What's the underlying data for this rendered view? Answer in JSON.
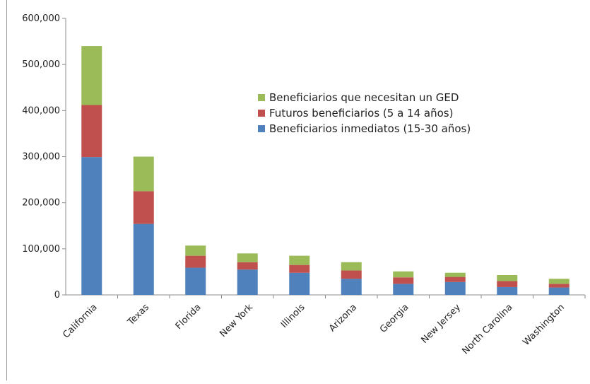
{
  "chart_data": {
    "type": "bar",
    "stacked": true,
    "title": "",
    "xlabel": "",
    "ylabel": "",
    "ylim": [
      0,
      600000
    ],
    "yticks": [
      "0",
      "100,000",
      "200,000",
      "300,000",
      "400,000",
      "500,000",
      "600,000"
    ],
    "grid": false,
    "legend_position": "upper-center",
    "categories": [
      "California",
      "Texas",
      "Florida",
      "New York",
      "Illinois",
      "Arizona",
      "Georgia",
      "New Jersey",
      "North Carolina",
      "Washington"
    ],
    "series": [
      {
        "name": "Beneficiarios inmediatos (15-30 años)",
        "color": "#4f81bd",
        "values": [
          299000,
          154000,
          59000,
          55000,
          48000,
          35000,
          24000,
          28000,
          17000,
          16000
        ]
      },
      {
        "name": "Futuros beneficiarios (5 a 14 años)",
        "color": "#c0504d",
        "values": [
          113000,
          71000,
          26000,
          16000,
          17000,
          18000,
          14000,
          11000,
          13000,
          8000
        ]
      },
      {
        "name": "Beneficiarios que necesitan un GED",
        "color": "#9bbb59",
        "values": [
          128000,
          75000,
          22000,
          19000,
          20000,
          18000,
          13000,
          9000,
          13000,
          11000
        ]
      }
    ]
  }
}
